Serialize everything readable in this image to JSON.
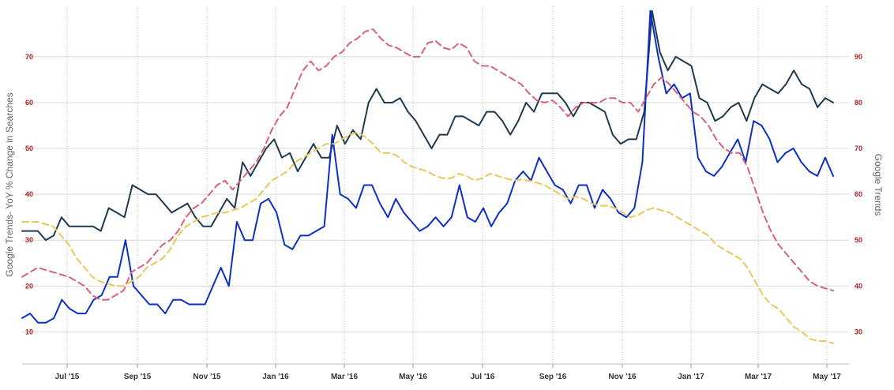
{
  "chart_data": {
    "type": "line",
    "title": "",
    "ylabel_left": "Google Trends- YoY % Change in Searches",
    "ylabel_right": "Google Trends",
    "x_ticks": [
      "Jul '15",
      "Sep '15",
      "Nov '15",
      "Jan '16",
      "Mar '16",
      "May '16",
      "Jul '16",
      "Sep '16",
      "Nov '16",
      "Jan '17",
      "Mar '17",
      "May '17"
    ],
    "y_left_ticks": [
      10,
      20,
      30,
      40,
      50,
      60,
      70
    ],
    "y_right_ticks": [
      30,
      40,
      50,
      60,
      70,
      80,
      90
    ],
    "ylim_left": [
      3,
      81
    ],
    "ylim_right": [
      23,
      101
    ],
    "grid": true,
    "legend": "none",
    "series": [
      {
        "axis": "left",
        "color": "#1f3a4d",
        "dash": "solid",
        "values": [
          32,
          32,
          32,
          30,
          31,
          35,
          33,
          33,
          33,
          33,
          32,
          37,
          36,
          35,
          42,
          41,
          40,
          40,
          38,
          36,
          37,
          38,
          35,
          33,
          33,
          36,
          39,
          37,
          47,
          44,
          47,
          50,
          52,
          48,
          49,
          45,
          48,
          51,
          48,
          48,
          55,
          51,
          54,
          52,
          60,
          63,
          60,
          60,
          61,
          58,
          56,
          53,
          50,
          53,
          53,
          57,
          57,
          56,
          55,
          58,
          58,
          56,
          53,
          56,
          60,
          58,
          62,
          62,
          62,
          60,
          57,
          60,
          60,
          59,
          58,
          53,
          51,
          52,
          52,
          58,
          80,
          71,
          67,
          70,
          69,
          68,
          61,
          60,
          56,
          57,
          59,
          60,
          56,
          61,
          64,
          63,
          62,
          64,
          67,
          64,
          63,
          59,
          61,
          60
        ]
      },
      {
        "axis": "left",
        "color": "#0d2fc6",
        "dash": "solid",
        "values": [
          13,
          14,
          12,
          12,
          13,
          17,
          15,
          14,
          14,
          17,
          18,
          22,
          22,
          30,
          20,
          18,
          16,
          16,
          14,
          17,
          17,
          16,
          16,
          16,
          20,
          24,
          20,
          34,
          30,
          30,
          38,
          39,
          36,
          29,
          28,
          31,
          31,
          32,
          33,
          53,
          40,
          39,
          37,
          42,
          42,
          38,
          35,
          39,
          36,
          34,
          32,
          33,
          35,
          33,
          35,
          42,
          35,
          34,
          37,
          33,
          36,
          38,
          43,
          45,
          43,
          48,
          45,
          42,
          41,
          38,
          42,
          42,
          37,
          41,
          39,
          36,
          35,
          37,
          47,
          80,
          70,
          62,
          64,
          61,
          62,
          48,
          45,
          44,
          46,
          49,
          52,
          47,
          56,
          55,
          52,
          47,
          49,
          50,
          47,
          45,
          44,
          48,
          44
        ]
      },
      {
        "axis": "right",
        "color": "#d9607e",
        "dash": "dashed",
        "values": [
          42,
          43,
          44,
          43.5,
          43,
          42.5,
          42,
          41,
          40,
          38,
          37,
          37,
          38,
          39,
          43,
          44,
          45,
          47,
          49,
          50,
          52,
          55,
          57,
          58,
          60,
          62,
          63,
          61,
          63,
          65,
          67,
          70,
          74,
          77,
          79,
          83,
          87,
          89,
          87,
          88,
          90,
          91,
          93,
          94,
          95.5,
          96,
          94,
          92.5,
          92,
          91,
          90,
          90,
          93,
          93.5,
          92,
          91.5,
          93,
          92,
          89,
          88,
          88,
          87,
          86,
          85,
          84,
          82,
          80.5,
          80,
          80.5,
          79,
          77,
          79,
          80,
          80,
          80,
          81,
          81,
          80,
          80,
          78,
          81,
          84,
          85.5,
          84,
          82,
          80,
          78,
          77,
          75,
          72,
          70,
          69,
          69,
          66,
          61,
          56,
          52,
          49,
          47,
          45,
          43,
          41,
          40,
          39.5,
          39
        ]
      },
      {
        "axis": "right",
        "color": "#e8c85a",
        "dash": "dashed",
        "values": [
          54,
          54,
          54,
          53.5,
          53,
          51,
          49,
          46,
          44,
          42,
          41,
          40.5,
          40,
          40,
          41,
          42,
          44,
          45,
          46,
          48,
          51,
          53,
          54,
          55,
          55.5,
          56,
          56,
          56.5,
          57,
          58,
          59,
          61,
          63,
          64,
          65,
          67,
          68,
          69,
          70,
          71,
          71,
          72,
          73,
          73.5,
          72.5,
          71,
          69,
          69,
          68.5,
          67,
          66,
          65.5,
          65,
          64,
          63.5,
          63.5,
          64.5,
          64,
          63,
          63.5,
          64.5,
          64,
          63.5,
          63,
          63.2,
          63,
          62.5,
          62,
          61,
          60,
          59,
          59.5,
          59,
          58,
          57.5,
          57.5,
          57,
          56,
          55,
          55.5,
          56.5,
          57,
          56.5,
          56,
          55,
          54,
          53,
          52,
          51,
          49,
          48,
          47,
          46,
          44,
          41,
          38,
          36,
          35,
          33,
          31,
          30,
          28.5,
          28,
          28,
          27.5
        ]
      }
    ]
  }
}
